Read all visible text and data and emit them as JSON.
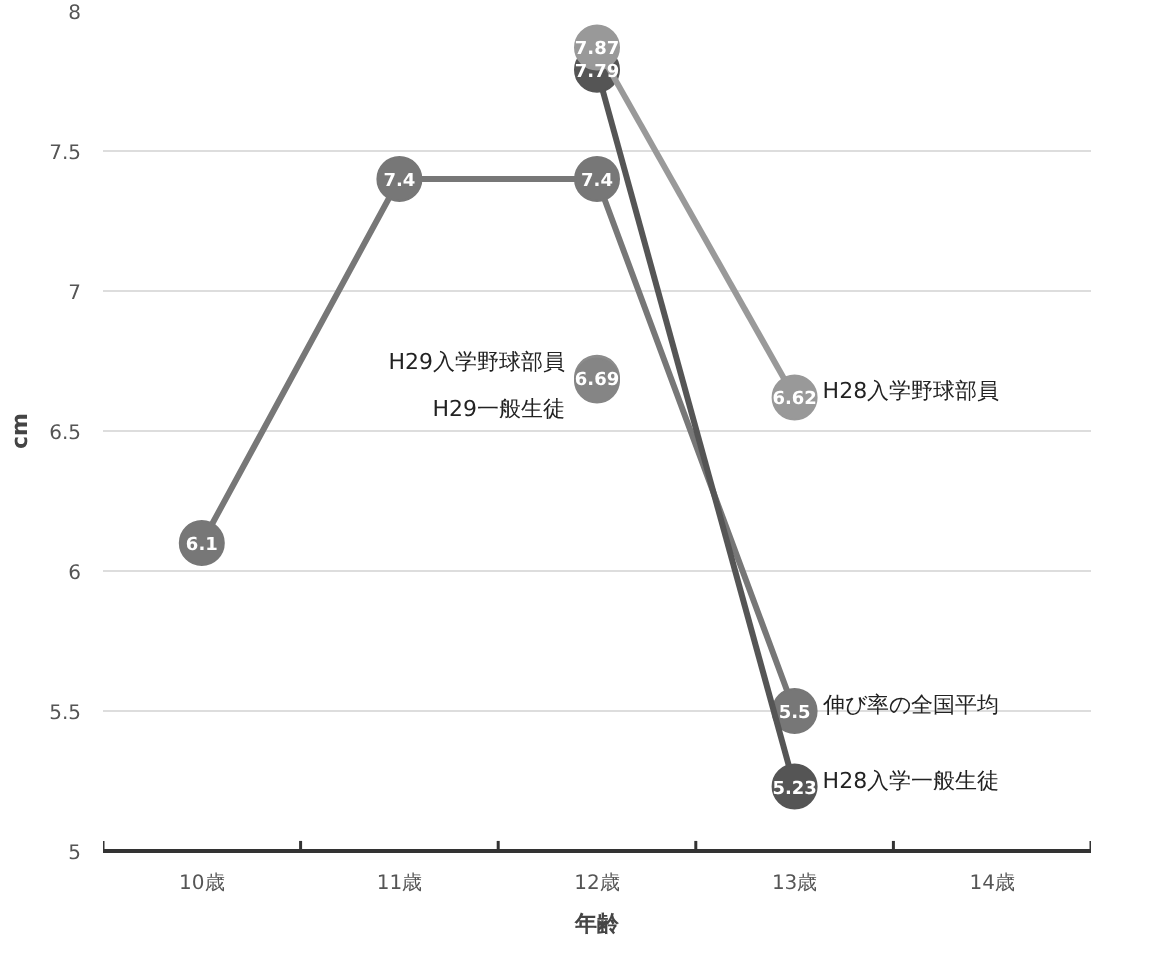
{
  "chart_data": {
    "type": "line",
    "xlabel": "年齢",
    "ylabel": "cm",
    "categories": [
      "10歳",
      "11歳",
      "12歳",
      "13歳",
      "14歳"
    ],
    "ylim": [
      5,
      8
    ],
    "yticks": [
      5,
      5.5,
      6,
      6.5,
      7,
      7.5,
      8
    ],
    "grid": "y",
    "marker": "circle",
    "line_style": "solid",
    "series": [
      {
        "name": "伸び率の全国平均",
        "color": "#777777",
        "values": [
          6.1,
          7.4,
          7.4,
          5.5,
          null
        ],
        "value_labels": [
          "6.1",
          "7.4",
          "7.4",
          "5.5",
          null
        ]
      },
      {
        "name": "H28入学一般生徒",
        "color": "#555555",
        "values": [
          null,
          null,
          7.79,
          5.23,
          null
        ],
        "value_labels": [
          null,
          null,
          "7.79",
          "5.23",
          null
        ]
      },
      {
        "name": "H28入学野球部員",
        "color": "#999999",
        "values": [
          null,
          null,
          7.87,
          6.62,
          null
        ],
        "value_labels": [
          null,
          null,
          "7.87",
          "6.62",
          null
        ]
      },
      {
        "name": "H29入学野球部員",
        "color": "#8c8c8c",
        "values": [
          null,
          null,
          6.69,
          null,
          null
        ],
        "value_labels": [
          null,
          null,
          "6.69",
          null,
          null
        ]
      },
      {
        "name": "H29一般生徒",
        "color": "#858585",
        "values": [
          null,
          null,
          6.68,
          null,
          null
        ],
        "value_labels": [
          null,
          null,
          null,
          null,
          null
        ]
      }
    ]
  }
}
